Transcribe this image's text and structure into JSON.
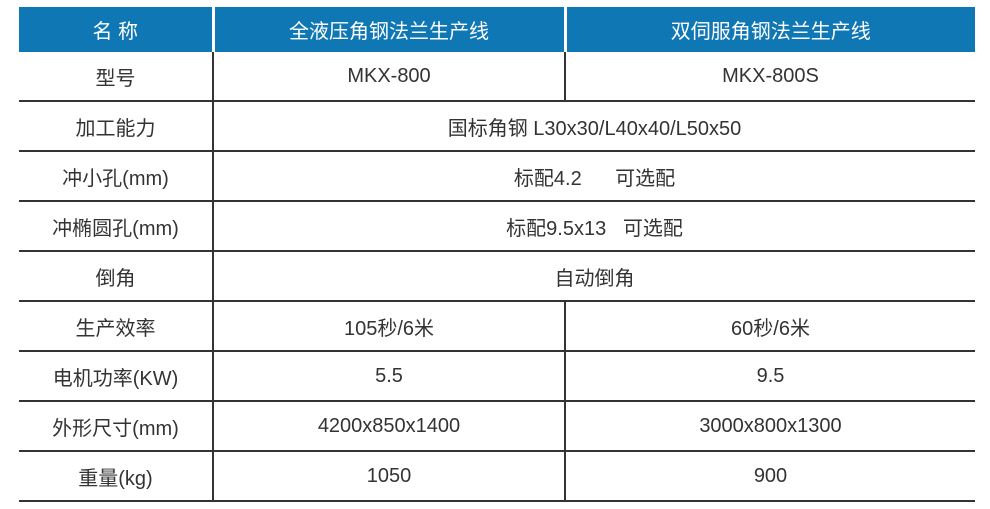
{
  "table": {
    "header": {
      "col1": "名 称",
      "col2": "全液压角钢法兰生产线",
      "col3": "双伺服角钢法兰生产线"
    },
    "rows": [
      {
        "label": "型号",
        "col2": "MKX-800",
        "col3": "MKX-800S"
      },
      {
        "label": "加工能力",
        "value": "国标角钢 L30x30/L40x40/L50x50"
      },
      {
        "label": "冲小孔(mm)",
        "value": "标配4.2      可选配"
      },
      {
        "label": "冲椭圆孔(mm)",
        "value": "标配9.5x13   可选配"
      },
      {
        "label": "倒角",
        "value": "自动倒角"
      },
      {
        "label": "生产效率",
        "col2": "105秒/6米",
        "col3": "60秒/6米"
      },
      {
        "label": "电机功率(KW)",
        "col2": "5.5",
        "col3": "9.5"
      },
      {
        "label": "外形尺寸(mm)",
        "col2": "4200x850x1400",
        "col3": "3000x800x1300"
      },
      {
        "label": "重量(kg)",
        "col2": "1050",
        "col3": "900"
      }
    ],
    "colors": {
      "header_bg": "#0f77b4",
      "header_text": "#ffffff",
      "border": "#333333",
      "body_text": "#333333",
      "background": "#ffffff"
    }
  }
}
